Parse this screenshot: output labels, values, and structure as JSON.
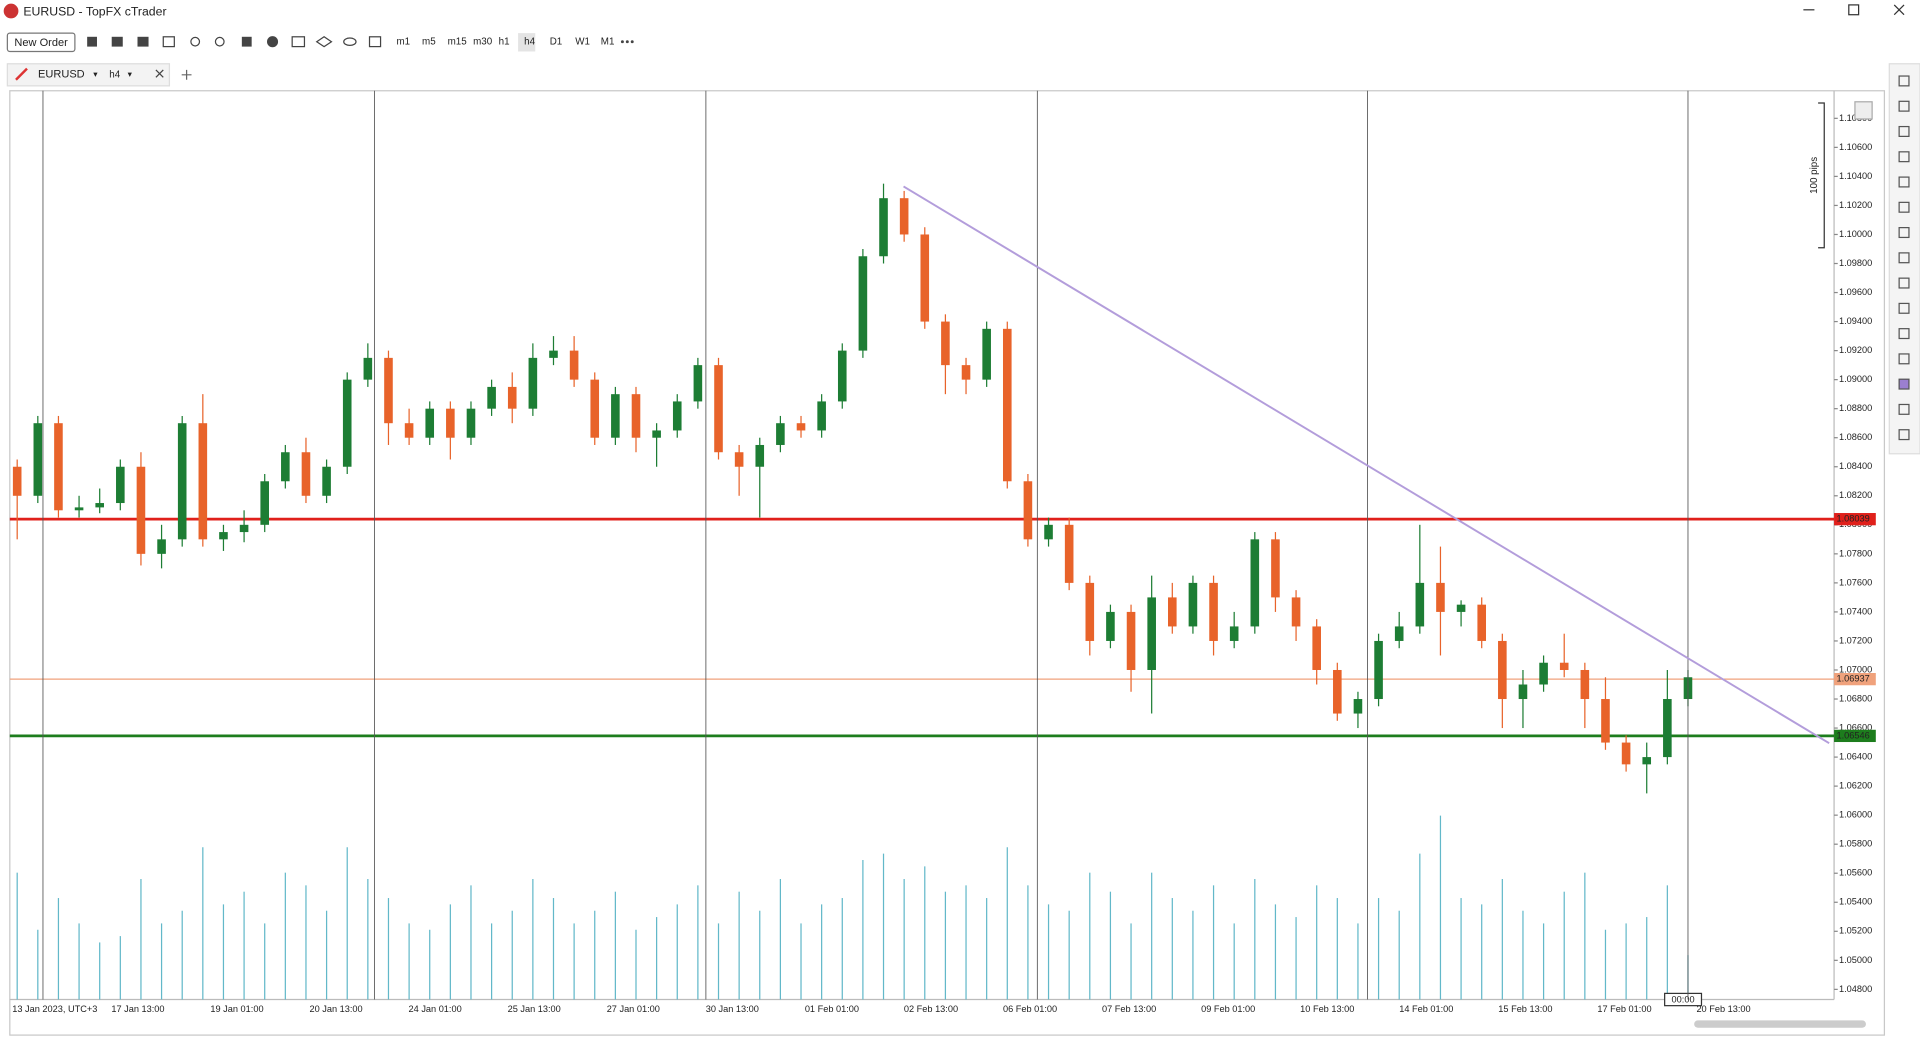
{
  "window": {
    "title": "EURUSD - TopFX cTrader"
  },
  "toolbar": {
    "new_order": "New Order",
    "timeframes": [
      "m1",
      "m5",
      "m15",
      "m30",
      "h1",
      "h4",
      "D1",
      "W1",
      "M1"
    ]
  },
  "tab": {
    "symbol": "EURUSD",
    "timeframe": "h4"
  },
  "chart_data": {
    "type": "candlestick",
    "up_color": "#1d7d34",
    "down_color": "#e8632a",
    "volume_color": "#62b8c9",
    "ylim": [
      1.0473,
      1.1099
    ],
    "yticks": [
      {
        "value": 1.048,
        "label": "1.04800"
      },
      {
        "value": 1.05,
        "label": "1.05000"
      },
      {
        "value": 1.052,
        "label": "1.05200"
      },
      {
        "value": 1.054,
        "label": "1.05400"
      },
      {
        "value": 1.056,
        "label": "1.05600"
      },
      {
        "value": 1.058,
        "label": "1.05800"
      },
      {
        "value": 1.06,
        "label": "1.06000"
      },
      {
        "value": 1.062,
        "label": "1.06200"
      },
      {
        "value": 1.064,
        "label": "1.06400"
      },
      {
        "value": 1.066,
        "label": "1.06600"
      },
      {
        "value": 1.068,
        "label": "1.06800"
      },
      {
        "value": 1.07,
        "label": "1.07000"
      },
      {
        "value": 1.072,
        "label": "1.07200"
      },
      {
        "value": 1.074,
        "label": "1.07400"
      },
      {
        "value": 1.076,
        "label": "1.07600"
      },
      {
        "value": 1.078,
        "label": "1.07800"
      },
      {
        "value": 1.08,
        "label": "1.08000"
      },
      {
        "value": 1.082,
        "label": "1.08200"
      },
      {
        "value": 1.084,
        "label": "1.08400"
      },
      {
        "value": 1.086,
        "label": "1.08600"
      },
      {
        "value": 1.088,
        "label": "1.08800"
      },
      {
        "value": 1.09,
        "label": "1.09000"
      },
      {
        "value": 1.092,
        "label": "1.09200"
      },
      {
        "value": 1.094,
        "label": "1.09400"
      },
      {
        "value": 1.096,
        "label": "1.09600"
      },
      {
        "value": 1.098,
        "label": "1.09800"
      },
      {
        "value": 1.1,
        "label": "1.10000"
      },
      {
        "value": 1.102,
        "label": "1.10200"
      },
      {
        "value": 1.104,
        "label": "1.10400"
      },
      {
        "value": 1.106,
        "label": "1.10600"
      },
      {
        "value": 1.108,
        "label": "1.10800"
      }
    ],
    "x_labels": [
      "13 Jan 2023, UTC+3",
      "17 Jan 13:00",
      "19 Jan 01:00",
      "20 Jan 13:00",
      "24 Jan 01:00",
      "25 Jan 13:00",
      "27 Jan 01:00",
      "30 Jan 13:00",
      "01 Feb 01:00",
      "02 Feb 13:00",
      "06 Feb 01:00",
      "07 Feb 13:00",
      "09 Feb 01:00",
      "10 Feb 13:00",
      "14 Feb 01:00",
      "15 Feb 13:00",
      "17 Feb 01:00",
      "20 Feb 13:00"
    ],
    "open": [
      1.084,
      1.082,
      1.087,
      1.081,
      1.0812,
      1.0815,
      1.084,
      1.078,
      1.079,
      1.087,
      1.079,
      1.0795,
      1.08,
      1.083,
      1.085,
      1.082,
      1.084,
      1.09,
      1.0915,
      1.087,
      1.086,
      1.088,
      1.086,
      1.088,
      1.0895,
      1.088,
      1.0915,
      1.092,
      1.09,
      1.086,
      1.089,
      1.086,
      1.0865,
      1.0885,
      1.091,
      1.085,
      1.084,
      1.0855,
      1.087,
      1.0865,
      1.0885,
      1.092,
      1.0985,
      1.1025,
      1.1,
      1.094,
      1.091,
      1.09,
      1.0935,
      1.083,
      1.079,
      1.08,
      1.076,
      1.072,
      1.074,
      1.07,
      1.075,
      1.073,
      1.076,
      1.072,
      1.073,
      1.079,
      1.075,
      1.073,
      1.07,
      1.067,
      1.068,
      1.072,
      1.073,
      1.076,
      1.074,
      1.0745,
      1.072,
      1.068,
      1.069,
      1.0705,
      1.07,
      1.068,
      1.065,
      1.0635,
      1.064,
      1.068
    ],
    "high": [
      1.0845,
      1.0875,
      1.0875,
      1.082,
      1.0825,
      1.0845,
      1.085,
      1.08,
      1.0875,
      1.089,
      1.08,
      1.081,
      1.0835,
      1.0855,
      1.086,
      1.0845,
      1.0905,
      1.0925,
      1.092,
      1.088,
      1.0885,
      1.0885,
      1.0885,
      1.09,
      1.0905,
      1.0925,
      1.093,
      1.093,
      1.0905,
      1.0895,
      1.0895,
      1.087,
      1.089,
      1.0915,
      1.0915,
      1.0855,
      1.086,
      1.0875,
      1.0875,
      1.089,
      1.0925,
      1.099,
      1.1035,
      1.103,
      1.1005,
      1.0945,
      1.0915,
      1.094,
      1.094,
      1.0835,
      1.0805,
      1.0805,
      1.0765,
      1.0745,
      1.0745,
      1.0765,
      1.076,
      1.0765,
      1.0765,
      1.074,
      1.0795,
      1.0795,
      1.0755,
      1.0735,
      1.0705,
      1.0685,
      1.0725,
      1.074,
      1.08,
      1.0785,
      1.0748,
      1.075,
      1.0725,
      1.07,
      1.071,
      1.0725,
      1.0705,
      1.0695,
      1.0655,
      1.065,
      1.07,
      1.07
    ],
    "low": [
      1.079,
      1.0815,
      1.0805,
      1.0805,
      1.0808,
      1.081,
      1.0772,
      1.077,
      1.0785,
      1.0785,
      1.0782,
      1.0788,
      1.0795,
      1.0825,
      1.0815,
      1.0815,
      1.0835,
      1.0895,
      1.0855,
      1.0855,
      1.0855,
      1.0845,
      1.0855,
      1.0875,
      1.087,
      1.0875,
      1.091,
      1.0895,
      1.0855,
      1.0855,
      1.085,
      1.084,
      1.086,
      1.088,
      1.0845,
      1.082,
      1.0805,
      1.085,
      1.086,
      1.086,
      1.088,
      1.0915,
      1.098,
      1.0995,
      1.0935,
      1.089,
      1.089,
      1.0895,
      1.0825,
      1.0785,
      1.0785,
      1.0755,
      1.071,
      1.0715,
      1.0685,
      1.067,
      1.0725,
      1.0725,
      1.071,
      1.0715,
      1.0725,
      1.074,
      1.072,
      1.069,
      1.0665,
      1.066,
      1.0675,
      1.0715,
      1.0725,
      1.071,
      1.073,
      1.0715,
      1.066,
      1.066,
      1.0685,
      1.0695,
      1.066,
      1.0645,
      1.063,
      1.0615,
      1.0635,
      1.0675
    ],
    "close": [
      1.082,
      1.087,
      1.081,
      1.0812,
      1.0815,
      1.084,
      1.078,
      1.079,
      1.087,
      1.079,
      1.0795,
      1.08,
      1.083,
      1.085,
      1.082,
      1.084,
      1.09,
      1.0915,
      1.087,
      1.086,
      1.088,
      1.086,
      1.088,
      1.0895,
      1.088,
      1.0915,
      1.092,
      1.09,
      1.086,
      1.089,
      1.086,
      1.0865,
      1.0885,
      1.091,
      1.085,
      1.084,
      1.0855,
      1.087,
      1.0865,
      1.0885,
      1.092,
      1.0985,
      1.1025,
      1.1,
      1.094,
      1.091,
      1.09,
      1.0935,
      1.083,
      1.079,
      1.08,
      1.076,
      1.072,
      1.074,
      1.07,
      1.075,
      1.073,
      1.076,
      1.072,
      1.073,
      1.079,
      1.075,
      1.073,
      1.07,
      1.067,
      1.068,
      1.072,
      1.073,
      1.076,
      1.074,
      1.0745,
      1.072,
      1.068,
      1.069,
      1.0705,
      1.07,
      1.068,
      1.065,
      1.0635,
      1.064,
      1.068,
      1.0695
    ],
    "volume": [
      100,
      55,
      80,
      60,
      45,
      50,
      95,
      60,
      70,
      120,
      75,
      85,
      60,
      100,
      90,
      70,
      120,
      95,
      80,
      60,
      55,
      75,
      90,
      60,
      70,
      95,
      80,
      60,
      70,
      85,
      55,
      65,
      75,
      90,
      60,
      85,
      70,
      95,
      60,
      75,
      80,
      110,
      115,
      95,
      105,
      85,
      90,
      80,
      120,
      90,
      75,
      70,
      100,
      85,
      60,
      100,
      80,
      70,
      90,
      60,
      95,
      75,
      65,
      90,
      80,
      60,
      80,
      70,
      115,
      145,
      80,
      75,
      95,
      70,
      60,
      85,
      100,
      55,
      60,
      65,
      90,
      35
    ],
    "levels": [
      {
        "value": 1.08039,
        "color": "#e0201b"
      },
      {
        "value": 1.06937,
        "color": "#f0a27c"
      },
      {
        "value": 1.06546,
        "color": "#1d7d1d"
      }
    ],
    "pips_label": "100 pips",
    "time_label": "00:00"
  }
}
